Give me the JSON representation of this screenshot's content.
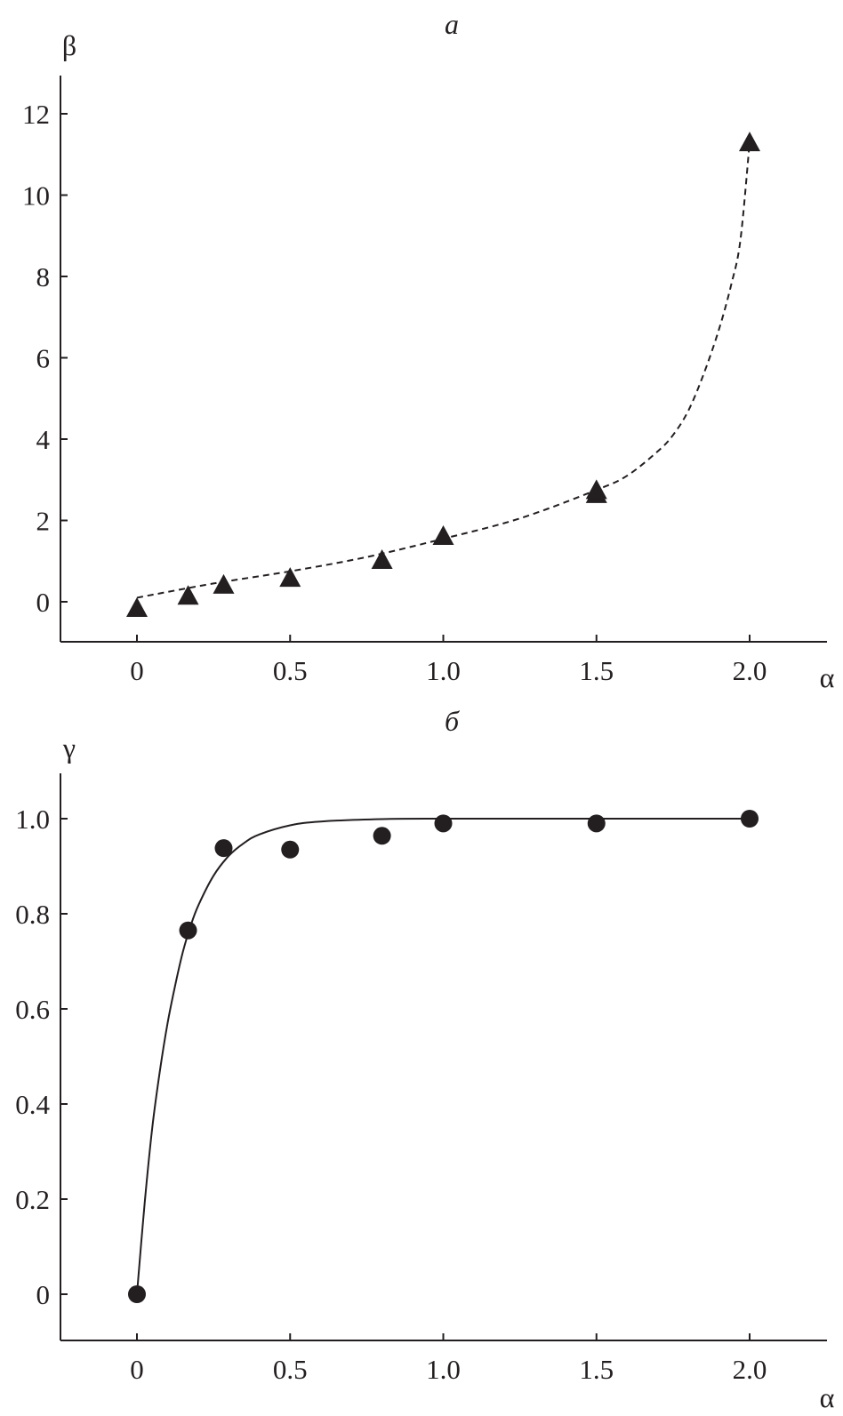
{
  "chart_data": [
    {
      "type": "scatter",
      "panel_label": "а",
      "xlabel": "α",
      "ylabel": "β",
      "xlim": [
        -0.25,
        2.25
      ],
      "ylim": [
        -1,
        13
      ],
      "xticks": [
        "0",
        "0.5",
        "1.0",
        "1.5",
        "2.0"
      ],
      "xtick_values": [
        0,
        0.5,
        1.0,
        1.5,
        2.0
      ],
      "yticks": [
        "0",
        "2",
        "4",
        "6",
        "8",
        "10",
        "12"
      ],
      "ytick_values": [
        0,
        2,
        4,
        6,
        8,
        10,
        12
      ],
      "grid": false,
      "marker": "triangle",
      "marker_color": "#231f20",
      "points": [
        {
          "x": 0,
          "y": 0.0
        },
        {
          "x": 0.167,
          "y": 0.3
        },
        {
          "x": 0.283,
          "y": 0.57
        },
        {
          "x": 0.5,
          "y": 0.74
        },
        {
          "x": 0.8,
          "y": 1.18
        },
        {
          "x": 1.0,
          "y": 1.77
        },
        {
          "x": 1.5,
          "y": 2.8
        },
        {
          "x": 1.5,
          "y": 2.9
        },
        {
          "x": 2.0,
          "y": 11.45
        }
      ],
      "fit_line_style": "dashed",
      "fit_curve": [
        {
          "x": 0,
          "y": 0.1
        },
        {
          "x": 0.25,
          "y": 0.45
        },
        {
          "x": 0.5,
          "y": 0.75
        },
        {
          "x": 0.75,
          "y": 1.1
        },
        {
          "x": 1.0,
          "y": 1.55
        },
        {
          "x": 1.25,
          "y": 2.05
        },
        {
          "x": 1.5,
          "y": 2.75
        },
        {
          "x": 1.6,
          "y": 3.1
        },
        {
          "x": 1.7,
          "y": 3.7
        },
        {
          "x": 1.75,
          "y": 4.1
        },
        {
          "x": 1.8,
          "y": 4.7
        },
        {
          "x": 1.85,
          "y": 5.6
        },
        {
          "x": 1.9,
          "y": 6.7
        },
        {
          "x": 1.94,
          "y": 7.8
        },
        {
          "x": 1.97,
          "y": 8.9
        },
        {
          "x": 2.0,
          "y": 11.3
        }
      ]
    },
    {
      "type": "scatter",
      "panel_label": "б",
      "xlabel": "α",
      "ylabel": "γ",
      "xlim": [
        -0.25,
        2.25
      ],
      "ylim": [
        -0.1,
        1.1
      ],
      "xticks": [
        "0",
        "0.5",
        "1.0",
        "1.5",
        "2.0"
      ],
      "xtick_values": [
        0,
        0.5,
        1.0,
        1.5,
        2.0
      ],
      "yticks": [
        "0",
        "0.2",
        "0.4",
        "0.6",
        "0.8",
        "1.0"
      ],
      "ytick_values": [
        0,
        0.2,
        0.4,
        0.6,
        0.8,
        1.0
      ],
      "grid": false,
      "marker": "circle",
      "marker_color": "#231f20",
      "points": [
        {
          "x": 0,
          "y": 0.0
        },
        {
          "x": 0.167,
          "y": 0.765
        },
        {
          "x": 0.283,
          "y": 0.938
        },
        {
          "x": 0.5,
          "y": 0.935
        },
        {
          "x": 0.8,
          "y": 0.964
        },
        {
          "x": 1.0,
          "y": 0.99
        },
        {
          "x": 1.5,
          "y": 0.99
        },
        {
          "x": 2.0,
          "y": 1.0
        }
      ],
      "fit_line_style": "solid",
      "fit_curve": [
        {
          "x": 0,
          "y": 0
        },
        {
          "x": 0.025,
          "y": 0.19
        },
        {
          "x": 0.05,
          "y": 0.35
        },
        {
          "x": 0.075,
          "y": 0.47
        },
        {
          "x": 0.1,
          "y": 0.57
        },
        {
          "x": 0.125,
          "y": 0.65
        },
        {
          "x": 0.15,
          "y": 0.72
        },
        {
          "x": 0.175,
          "y": 0.774
        },
        {
          "x": 0.2,
          "y": 0.817
        },
        {
          "x": 0.25,
          "y": 0.88
        },
        {
          "x": 0.3,
          "y": 0.922
        },
        {
          "x": 0.35,
          "y": 0.949
        },
        {
          "x": 0.4,
          "y": 0.967
        },
        {
          "x": 0.5,
          "y": 0.986
        },
        {
          "x": 0.6,
          "y": 0.994
        },
        {
          "x": 0.8,
          "y": 0.999
        },
        {
          "x": 1.0,
          "y": 1.0
        },
        {
          "x": 2.0,
          "y": 1.0
        }
      ]
    }
  ]
}
